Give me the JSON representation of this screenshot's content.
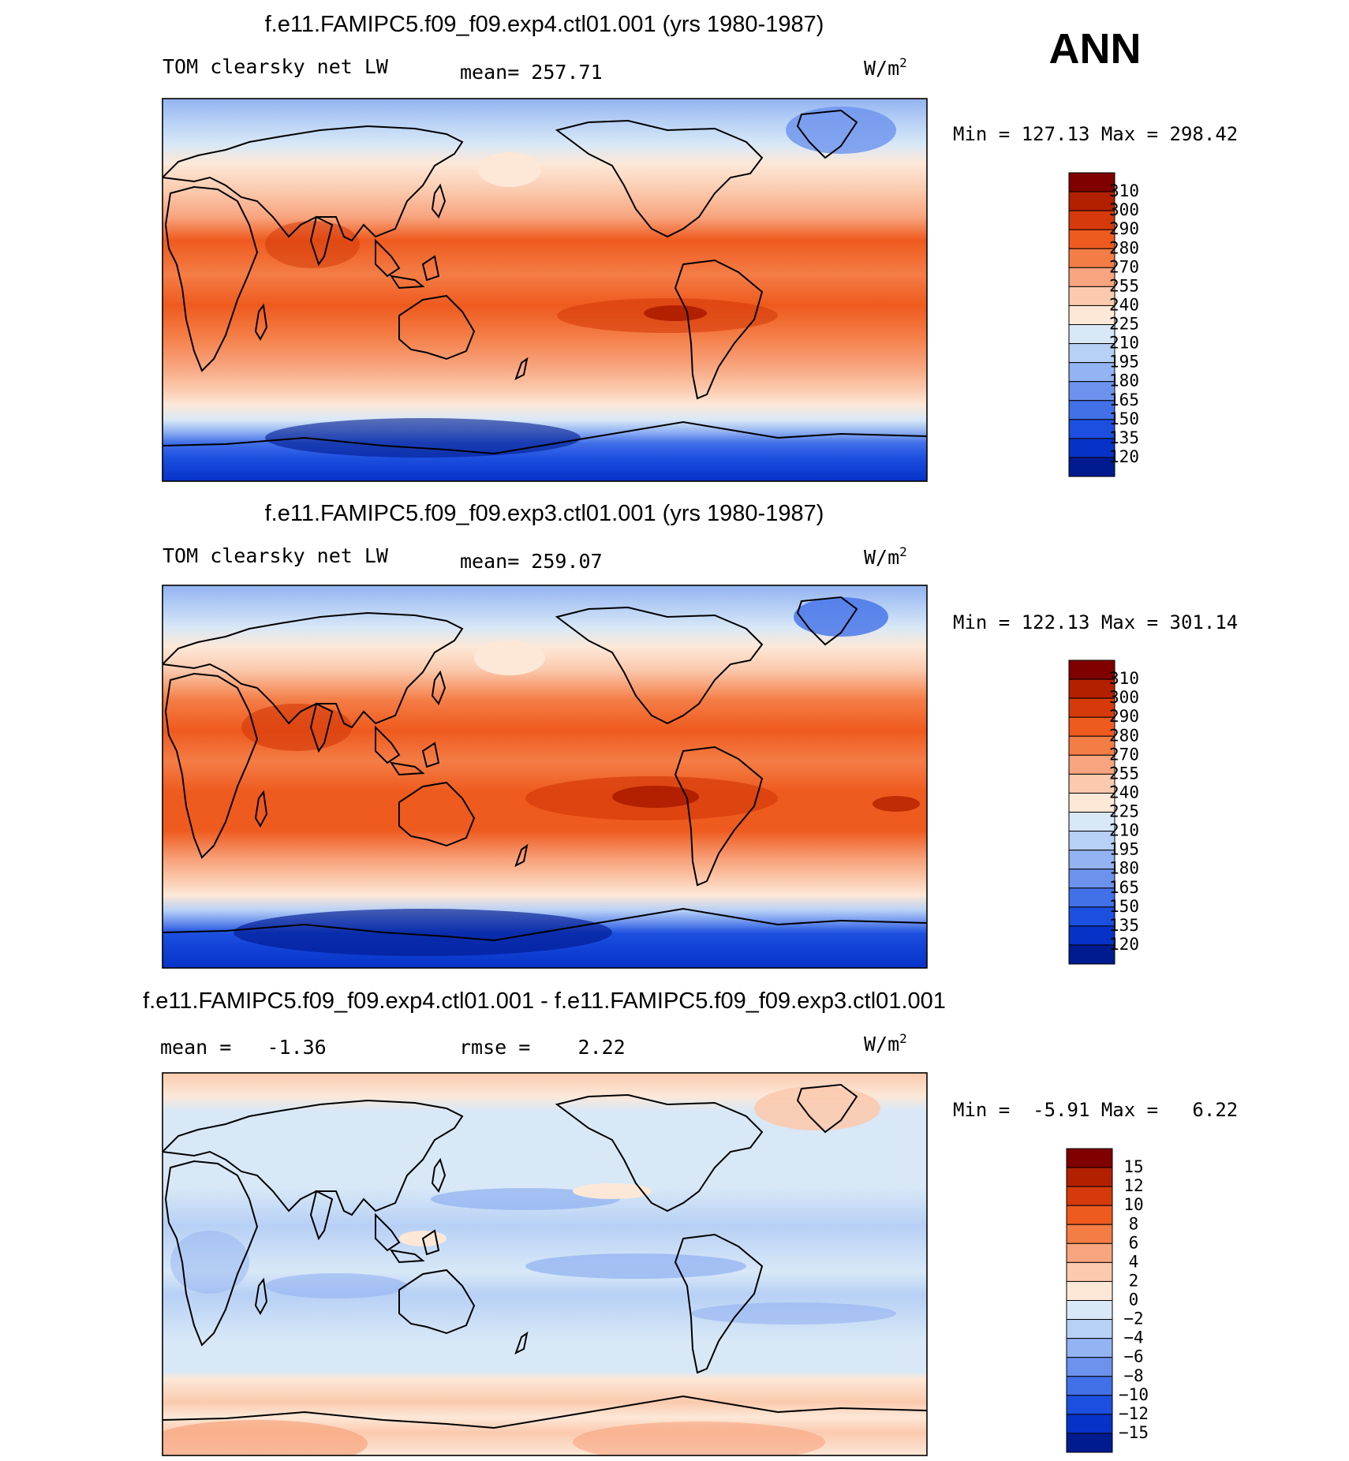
{
  "season_label": "ANN",
  "panels": [
    {
      "title": "f.e11.FAMIPC5.f09_f09.exp4.ctl01.001 (yrs 1980-1987)",
      "variable": "TOM clearsky net LW",
      "stat_text": "mean= 257.71",
      "units_base": "W/m",
      "units_exp": "2",
      "minmax_text": "Min = 127.13 Max = 298.42",
      "kind": "abs"
    },
    {
      "title": "f.e11.FAMIPC5.f09_f09.exp3.ctl01.001 (yrs 1980-1987)",
      "variable": "TOM clearsky net LW",
      "stat_text": "mean= 259.07",
      "units_base": "W/m",
      "units_exp": "2",
      "minmax_text": "Min = 122.13 Max = 301.14",
      "kind": "abs"
    },
    {
      "title": "f.e11.FAMIPC5.f09_f09.exp4.ctl01.001 - f.e11.FAMIPC5.f09_f09.exp3.ctl01.001",
      "variable": "",
      "stat_text": "mean =   -1.36",
      "rmse_text": "rmse =    2.22",
      "units_base": "W/m",
      "units_exp": "2",
      "minmax_text": "Min =  -5.91 Max =   6.22",
      "kind": "diff"
    }
  ],
  "colorbars": {
    "abs": {
      "labels": [
        "310",
        "300",
        "290",
        "280",
        "270",
        "255",
        "240",
        "225",
        "210",
        "195",
        "180",
        "165",
        "150",
        "135",
        "120"
      ],
      "colors": [
        "#800000",
        "#b32000",
        "#d63a0a",
        "#ef5a1e",
        "#f47d46",
        "#f8a47e",
        "#fbcaae",
        "#fde8d8",
        "#d8e8f7",
        "#b7d0f5",
        "#93b3f2",
        "#6c92ee",
        "#4270e8",
        "#1c4fe0",
        "#0632c8",
        "#001a90"
      ]
    },
    "diff": {
      "labels": [
        "15",
        "12",
        "10",
        "8",
        "6",
        "4",
        "2",
        "0",
        "−2",
        "−4",
        "−6",
        "−8",
        "−10",
        "−12",
        "−15"
      ],
      "colors": [
        "#800000",
        "#b32000",
        "#d63a0a",
        "#ef5a1e",
        "#f47d46",
        "#f8a47e",
        "#fbcaae",
        "#fde8d8",
        "#d8e8f7",
        "#b7d0f5",
        "#93b3f2",
        "#6c92ee",
        "#4270e8",
        "#1c4fe0",
        "#0632c8",
        "#001a90"
      ]
    }
  },
  "chart_data": [
    {
      "type": "heatmap",
      "title": "f.e11.FAMIPC5.f09_f09.exp4.ctl01.001 (yrs 1980-1987)",
      "variable": "TOM clearsky net LW",
      "units": "W/m^2",
      "mean": 257.71,
      "min": 127.13,
      "max": 298.42,
      "contour_levels": [
        120,
        135,
        150,
        165,
        180,
        195,
        210,
        225,
        240,
        255,
        270,
        280,
        290,
        300,
        310
      ],
      "zonal_profile": {
        "lat": [
          90,
          75,
          60,
          45,
          30,
          15,
          0,
          -15,
          -30,
          -45,
          -60,
          -75,
          -90
        ],
        "value": [
          190,
          205,
          230,
          250,
          270,
          282,
          278,
          284,
          272,
          250,
          225,
          175,
          140
        ]
      }
    },
    {
      "type": "heatmap",
      "title": "f.e11.FAMIPC5.f09_f09.exp3.ctl01.001 (yrs 1980-1987)",
      "variable": "TOM clearsky net LW",
      "units": "W/m^2",
      "mean": 259.07,
      "min": 122.13,
      "max": 301.14,
      "contour_levels": [
        120,
        135,
        150,
        165,
        180,
        195,
        210,
        225,
        240,
        255,
        270,
        280,
        290,
        300,
        310
      ],
      "zonal_profile": {
        "lat": [
          90,
          75,
          60,
          45,
          30,
          15,
          0,
          -15,
          -30,
          -45,
          -60,
          -75,
          -90
        ],
        "value": [
          192,
          207,
          232,
          252,
          272,
          284,
          280,
          286,
          274,
          252,
          226,
          170,
          135
        ]
      }
    },
    {
      "type": "heatmap",
      "title": "f.e11.FAMIPC5.f09_f09.exp4.ctl01.001 - f.e11.FAMIPC5.f09_f09.exp3.ctl01.001",
      "units": "W/m^2",
      "mean": -1.36,
      "rmse": 2.22,
      "min": -5.91,
      "max": 6.22,
      "contour_levels": [
        -15,
        -12,
        -10,
        -8,
        -6,
        -4,
        -2,
        0,
        2,
        4,
        6,
        8,
        10,
        12,
        15
      ],
      "zonal_profile": {
        "lat": [
          90,
          75,
          60,
          45,
          30,
          15,
          0,
          -15,
          -30,
          -45,
          -60,
          -75,
          -90
        ],
        "value": [
          0.5,
          -1.5,
          -1.8,
          -1.0,
          -1.5,
          -3.0,
          -2.0,
          -3.0,
          -1.5,
          -1.0,
          1.0,
          2.5,
          3.5
        ]
      }
    }
  ]
}
